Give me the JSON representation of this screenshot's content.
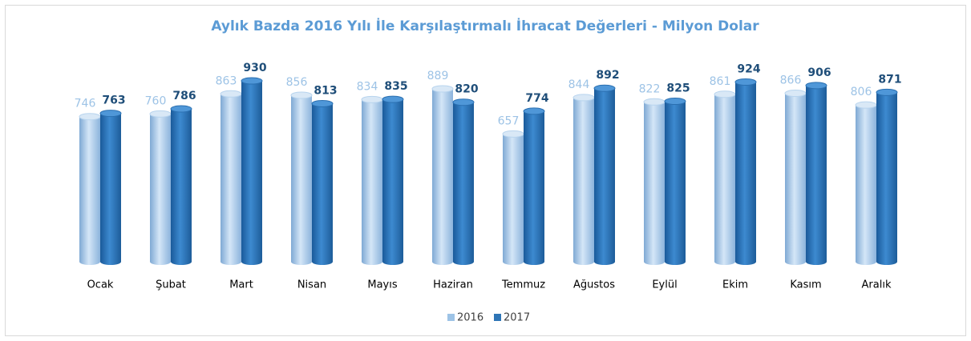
{
  "chart_data": {
    "type": "bar",
    "title": "Aylık Bazda 2016 Yılı İle Karşılaştırmalı İhracat Değerleri - Milyon Dolar",
    "categories": [
      "Ocak",
      "Şubat",
      "Mart",
      "Nisan",
      "Mayıs",
      "Haziran",
      "Temmuz",
      "Ağustos",
      "Eylül",
      "Ekim",
      "Kasım",
      "Aralık"
    ],
    "series": [
      {
        "name": "2016",
        "color": "#9dc3e6",
        "values": [
          746,
          760,
          863,
          856,
          834,
          889,
          657,
          844,
          822,
          861,
          866,
          806
        ]
      },
      {
        "name": "2017",
        "color": "#2e75b6",
        "values": [
          763,
          786,
          930,
          813,
          835,
          820,
          774,
          892,
          825,
          924,
          906,
          871
        ]
      }
    ],
    "legend": "bottom"
  }
}
